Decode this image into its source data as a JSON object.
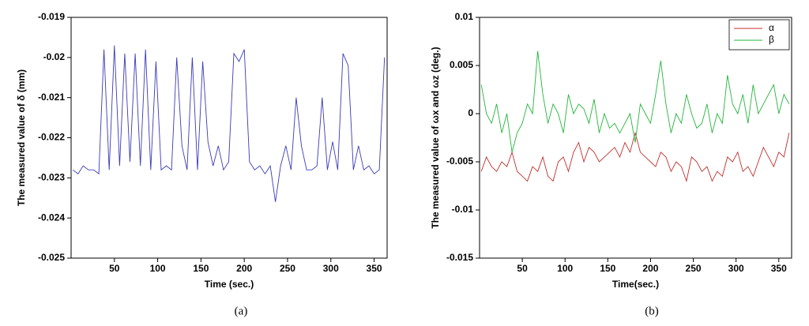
{
  "chart_data": [
    {
      "type": "line",
      "caption": "(a)",
      "x_label": "Time (sec.)",
      "y_label": "The measured value of δ (mm)",
      "xlim": [
        0,
        365
      ],
      "xticks": [
        50,
        100,
        150,
        200,
        250,
        300,
        350
      ],
      "ylim": [
        -0.025,
        -0.019
      ],
      "yticks": [
        -0.025,
        -0.024,
        -0.023,
        -0.022,
        -0.021,
        -0.02,
        -0.019
      ],
      "x": [
        2,
        8,
        14,
        20,
        26,
        32,
        38,
        44,
        50,
        56,
        62,
        68,
        74,
        80,
        86,
        92,
        98,
        104,
        110,
        116,
        122,
        128,
        134,
        140,
        146,
        152,
        158,
        164,
        170,
        176,
        182,
        188,
        194,
        200,
        206,
        212,
        218,
        224,
        230,
        236,
        242,
        248,
        254,
        260,
        266,
        272,
        278,
        284,
        290,
        296,
        302,
        308,
        314,
        320,
        326,
        332,
        338,
        344,
        350,
        356,
        362
      ],
      "series": [
        {
          "color": "#3a3ab8",
          "values": [
            -0.0228,
            -0.0229,
            -0.0227,
            -0.0228,
            -0.0228,
            -0.0229,
            -0.0198,
            -0.0228,
            -0.0197,
            -0.0227,
            -0.0199,
            -0.0226,
            -0.0199,
            -0.0227,
            -0.0198,
            -0.0228,
            -0.0201,
            -0.0228,
            -0.0227,
            -0.0228,
            -0.02,
            -0.0222,
            -0.0228,
            -0.02,
            -0.0228,
            -0.0201,
            -0.0221,
            -0.0227,
            -0.0222,
            -0.0228,
            -0.0226,
            -0.0199,
            -0.0201,
            -0.0198,
            -0.0226,
            -0.0228,
            -0.0227,
            -0.0229,
            -0.0227,
            -0.0236,
            -0.0227,
            -0.0222,
            -0.0228,
            -0.021,
            -0.0222,
            -0.0228,
            -0.0228,
            -0.0227,
            -0.021,
            -0.0228,
            -0.0221,
            -0.0228,
            -0.0199,
            -0.0202,
            -0.0228,
            -0.0222,
            -0.0228,
            -0.0227,
            -0.0229,
            -0.0228,
            -0.02
          ]
        }
      ]
    },
    {
      "type": "line",
      "caption": "(b)",
      "x_label": "Time(sec.)",
      "y_label": "The measured value of ωx and ωz (deg.)",
      "xlim": [
        0,
        365
      ],
      "xticks": [
        50,
        100,
        150,
        200,
        250,
        300,
        350
      ],
      "ylim": [
        -0.015,
        0.01
      ],
      "yticks": [
        -0.015,
        -0.01,
        -0.005,
        0,
        0.005,
        0.01
      ],
      "legend": "upper right",
      "x": [
        2,
        8,
        14,
        20,
        26,
        32,
        38,
        44,
        50,
        56,
        62,
        68,
        74,
        80,
        86,
        92,
        98,
        104,
        110,
        116,
        122,
        128,
        134,
        140,
        146,
        152,
        158,
        164,
        170,
        176,
        182,
        188,
        194,
        200,
        206,
        212,
        218,
        224,
        230,
        236,
        242,
        248,
        254,
        260,
        266,
        272,
        278,
        284,
        290,
        296,
        302,
        308,
        314,
        320,
        326,
        332,
        338,
        344,
        350,
        356,
        362
      ],
      "series": [
        {
          "name": "α",
          "color": "#c0302c",
          "values": [
            -0.006,
            -0.0045,
            -0.0055,
            -0.006,
            -0.005,
            -0.0055,
            -0.004,
            -0.006,
            -0.0065,
            -0.007,
            -0.0055,
            -0.006,
            -0.0045,
            -0.0065,
            -0.007,
            -0.005,
            -0.0045,
            -0.006,
            -0.004,
            -0.003,
            -0.005,
            -0.0035,
            -0.004,
            -0.005,
            -0.0045,
            -0.004,
            -0.0035,
            -0.0045,
            -0.003,
            -0.004,
            -0.002,
            -0.004,
            -0.0045,
            -0.005,
            -0.0055,
            -0.004,
            -0.0045,
            -0.006,
            -0.005,
            -0.0055,
            -0.007,
            -0.0045,
            -0.005,
            -0.006,
            -0.0055,
            -0.007,
            -0.006,
            -0.0065,
            -0.0045,
            -0.005,
            -0.004,
            -0.006,
            -0.0055,
            -0.0065,
            -0.005,
            -0.0035,
            -0.0045,
            -0.0055,
            -0.004,
            -0.0045,
            -0.002
          ]
        },
        {
          "name": "β",
          "color": "#22b53a",
          "values": [
            0.003,
            0,
            -0.001,
            0.001,
            -0.002,
            0,
            -0.004,
            -0.002,
            -0.001,
            0.001,
            0,
            0.0065,
            0.002,
            -0.001,
            0.001,
            0,
            -0.002,
            0.002,
            0,
            0.001,
            0.0005,
            -0.001,
            0.0015,
            -0.002,
            0,
            -0.0015,
            -0.001,
            -0.002,
            -0.001,
            0,
            -0.003,
            0.001,
            0,
            -0.001,
            0.002,
            0.0055,
            0.001,
            -0.002,
            0,
            -0.001,
            0.002,
            0,
            -0.0015,
            -0.001,
            0.001,
            -0.002,
            0,
            -0.001,
            0.004,
            0.001,
            0,
            0.002,
            -0.001,
            0.003,
            0,
            0.001,
            0.002,
            0.003,
            0,
            0.002,
            0.001
          ]
        }
      ]
    }
  ]
}
